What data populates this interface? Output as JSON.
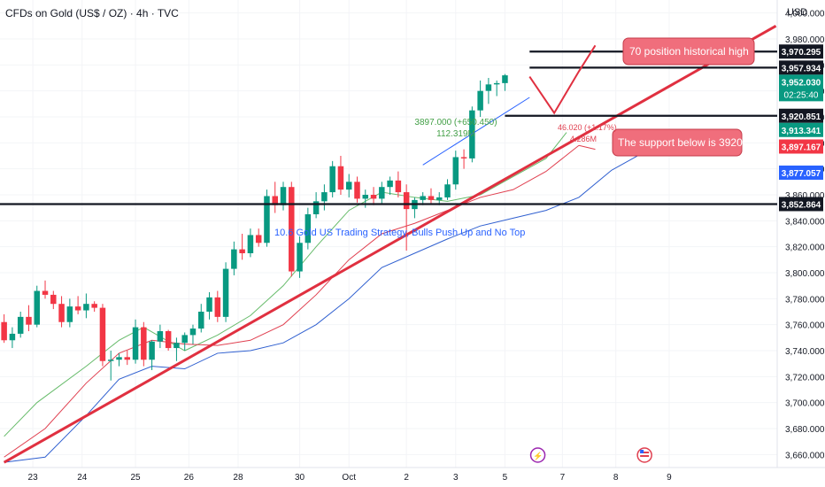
{
  "header": {
    "symbol": "CFDs on Gold (US$ / OZ) · 4h · TVC",
    "currency": "USD"
  },
  "colors": {
    "up": "#089981",
    "down": "#f23645",
    "trend": "#e03040",
    "ma_green": "#66bb6a",
    "ma_red": "#e04050",
    "ma_blue": "#3060d0",
    "label_bg": "#f06e7c"
  },
  "chart_data": {
    "type": "candlestick",
    "instrument": "CFDs on Gold (US$ / OZ)",
    "timeframe": "4h",
    "ylim": [
      3650,
      4010
    ],
    "y_ticks": [
      3660,
      3680,
      3700,
      3720,
      3740,
      3760,
      3780,
      3800,
      3820,
      3840,
      3860,
      3880,
      3900,
      3920,
      3940,
      3960,
      3980,
      4000
    ],
    "y_tick_labels": [
      "3,660.000",
      "3,680.000",
      "3,700.000",
      "3,720.000",
      "3,740.000",
      "3,760.000",
      "3,780.000",
      "3,800.000",
      "3,820.000",
      "3,840.000",
      "3,860.000",
      "3,880.000",
      "3,900.000",
      "3,920.000",
      "3,940.000",
      "3,960.000",
      "3,980.000",
      "4,000.000"
    ],
    "x_labels": [
      "23",
      "24",
      "25",
      "26",
      "28",
      "30",
      "Oct",
      "2",
      "3",
      "5",
      "7",
      "8",
      "9"
    ],
    "x_label_idx": [
      3.5,
      9.5,
      16,
      22.5,
      28.5,
      36,
      42,
      49,
      55,
      61,
      68,
      74.5,
      81
    ],
    "slot_domain": [
      -0.5,
      92
    ],
    "candles": [
      [
        3762,
        3768,
        3746,
        3748
      ],
      [
        3748,
        3758,
        3742,
        3753
      ],
      [
        3753,
        3770,
        3750,
        3766
      ],
      [
        3766,
        3775,
        3755,
        3760
      ],
      [
        3760,
        3790,
        3758,
        3786
      ],
      [
        3786,
        3794,
        3780,
        3783
      ],
      [
        3783,
        3786,
        3772,
        3776
      ],
      [
        3776,
        3782,
        3758,
        3762
      ],
      [
        3762,
        3780,
        3758,
        3774
      ],
      [
        3774,
        3782,
        3768,
        3771
      ],
      [
        3771,
        3784,
        3765,
        3776
      ],
      [
        3776,
        3778,
        3770,
        3773
      ],
      [
        3773,
        3776,
        3728,
        3732
      ],
      [
        3732,
        3740,
        3717,
        3733
      ],
      [
        3733,
        3738,
        3728,
        3735
      ],
      [
        3735,
        3740,
        3729,
        3733
      ],
      [
        3733,
        3764,
        3730,
        3758
      ],
      [
        3758,
        3762,
        3728,
        3733
      ],
      [
        3733,
        3748,
        3725,
        3747
      ],
      [
        3747,
        3760,
        3742,
        3755
      ],
      [
        3755,
        3756,
        3740,
        3742
      ],
      [
        3742,
        3750,
        3732,
        3746
      ],
      [
        3746,
        3754,
        3740,
        3752
      ],
      [
        3752,
        3760,
        3745,
        3757
      ],
      [
        3757,
        3776,
        3754,
        3770
      ],
      [
        3770,
        3785,
        3764,
        3781
      ],
      [
        3781,
        3786,
        3762,
        3766
      ],
      [
        3766,
        3808,
        3762,
        3803
      ],
      [
        3803,
        3824,
        3798,
        3818
      ],
      [
        3818,
        3830,
        3810,
        3815
      ],
      [
        3815,
        3834,
        3812,
        3829
      ],
      [
        3829,
        3834,
        3820,
        3823
      ],
      [
        3823,
        3864,
        3820,
        3859
      ],
      [
        3859,
        3870,
        3846,
        3852
      ],
      [
        3852,
        3870,
        3848,
        3866
      ],
      [
        3866,
        3870,
        3797,
        3801
      ],
      [
        3801,
        3828,
        3796,
        3823
      ],
      [
        3823,
        3850,
        3818,
        3845
      ],
      [
        3845,
        3862,
        3842,
        3855
      ],
      [
        3855,
        3868,
        3848,
        3862
      ],
      [
        3862,
        3886,
        3858,
        3882
      ],
      [
        3882,
        3890,
        3860,
        3864
      ],
      [
        3864,
        3876,
        3858,
        3870
      ],
      [
        3870,
        3874,
        3854,
        3857
      ],
      [
        3857,
        3864,
        3850,
        3860
      ],
      [
        3860,
        3866,
        3852,
        3857
      ],
      [
        3857,
        3870,
        3853,
        3866
      ],
      [
        3866,
        3874,
        3860,
        3871
      ],
      [
        3871,
        3878,
        3858,
        3862
      ],
      [
        3862,
        3868,
        3817,
        3849
      ],
      [
        3849,
        3858,
        3842,
        3856
      ],
      [
        3856,
        3862,
        3852,
        3859
      ],
      [
        3859,
        3865,
        3853,
        3856
      ],
      [
        3856,
        3862,
        3852,
        3858
      ],
      [
        3858,
        3872,
        3856,
        3868
      ],
      [
        3868,
        3894,
        3864,
        3889
      ],
      [
        3889,
        3895,
        3880,
        3888
      ],
      [
        3888,
        3928,
        3885,
        3925
      ],
      [
        3925,
        3948,
        3920,
        3940
      ],
      [
        3940,
        3950,
        3930,
        3945
      ],
      [
        3945,
        3948,
        3936,
        3946
      ],
      [
        3946,
        3953,
        3940,
        3952
      ]
    ],
    "ma_green": [
      [
        0,
        3674
      ],
      [
        4,
        3700
      ],
      [
        10,
        3728
      ],
      [
        14,
        3748
      ],
      [
        17,
        3758
      ],
      [
        22,
        3740
      ],
      [
        26,
        3752
      ],
      [
        30,
        3767
      ],
      [
        34,
        3790
      ],
      [
        38,
        3820
      ],
      [
        42,
        3848
      ],
      [
        46,
        3862
      ],
      [
        50,
        3858
      ],
      [
        54,
        3855
      ],
      [
        58,
        3860
      ],
      [
        62,
        3874
      ],
      [
        66,
        3888
      ],
      [
        68.5,
        3908
      ]
    ],
    "ma_red": [
      [
        0,
        3658
      ],
      [
        5,
        3680
      ],
      [
        10,
        3715
      ],
      [
        14,
        3738
      ],
      [
        18,
        3748
      ],
      [
        22,
        3745
      ],
      [
        26,
        3744
      ],
      [
        30,
        3748
      ],
      [
        34,
        3760
      ],
      [
        38,
        3783
      ],
      [
        42,
        3810
      ],
      [
        46,
        3830
      ],
      [
        50,
        3838
      ],
      [
        54,
        3848
      ],
      [
        58,
        3858
      ],
      [
        62,
        3864
      ],
      [
        66,
        3878
      ],
      [
        70,
        3898
      ]
    ],
    "ma_blue": [
      [
        0,
        3654
      ],
      [
        5,
        3658
      ],
      [
        10,
        3690
      ],
      [
        14,
        3718
      ],
      [
        18,
        3728
      ],
      [
        22,
        3726
      ],
      [
        26,
        3738
      ],
      [
        30,
        3740
      ],
      [
        34,
        3746
      ],
      [
        38,
        3760
      ],
      [
        42,
        3780
      ],
      [
        46,
        3804
      ],
      [
        50,
        3815
      ],
      [
        54,
        3826
      ],
      [
        58,
        3836
      ],
      [
        62,
        3842
      ],
      [
        66,
        3848
      ],
      [
        70,
        3858
      ],
      [
        74,
        3879
      ]
    ],
    "h_lines": [
      3852.864,
      3920.851,
      3957.934,
      3970.295
    ],
    "trendline": [
      [
        0,
        3654
      ],
      [
        94,
        3990
      ]
    ],
    "measure_line": [
      [
        51,
        3883
      ],
      [
        64,
        3935
      ]
    ],
    "arrow_path": [
      [
        64,
        3951
      ],
      [
        67,
        3923
      ],
      [
        70,
        3955
      ],
      [
        72,
        3975
      ]
    ],
    "price_tags": [
      {
        "value": 3970.295,
        "label": "3,970.295",
        "bg": "#131722",
        "fg": "#ffffff"
      },
      {
        "value": 3957.934,
        "label": "3,957.934",
        "bg": "#131722",
        "fg": "#ffffff"
      },
      {
        "value": 3952.03,
        "label": "3,952.030",
        "bg": "#089981",
        "fg": "#ffffff",
        "sub": "02:25:40"
      },
      {
        "value": 3920.851,
        "label": "3,920.851",
        "bg": "#131722",
        "fg": "#ffffff"
      },
      {
        "value": 3913.341,
        "label": "3,913.341",
        "bg": "#089981",
        "fg": "#ffffff"
      },
      {
        "value": 3897.167,
        "label": "3,897.167",
        "bg": "#f23645",
        "fg": "#ffffff"
      },
      {
        "value": 3877.057,
        "label": "3,877.057",
        "bg": "#2962ff",
        "fg": "#ffffff"
      },
      {
        "value": 3852.864,
        "label": "3,852.864",
        "bg": "#131722",
        "fg": "#ffffff"
      }
    ],
    "annotations": {
      "high_label": "70 position historical high",
      "support_label": "The support below is 3920",
      "measure_text_1": "3897.000 (+650.450)",
      "measure_text_2": "112.319M",
      "strategy_text": "10.6 Gold US Trading Strategy, Bulls Push Up and No Top",
      "small_text_1": "46.020 (+1.17%)",
      "small_text_2": "4.286M"
    }
  }
}
